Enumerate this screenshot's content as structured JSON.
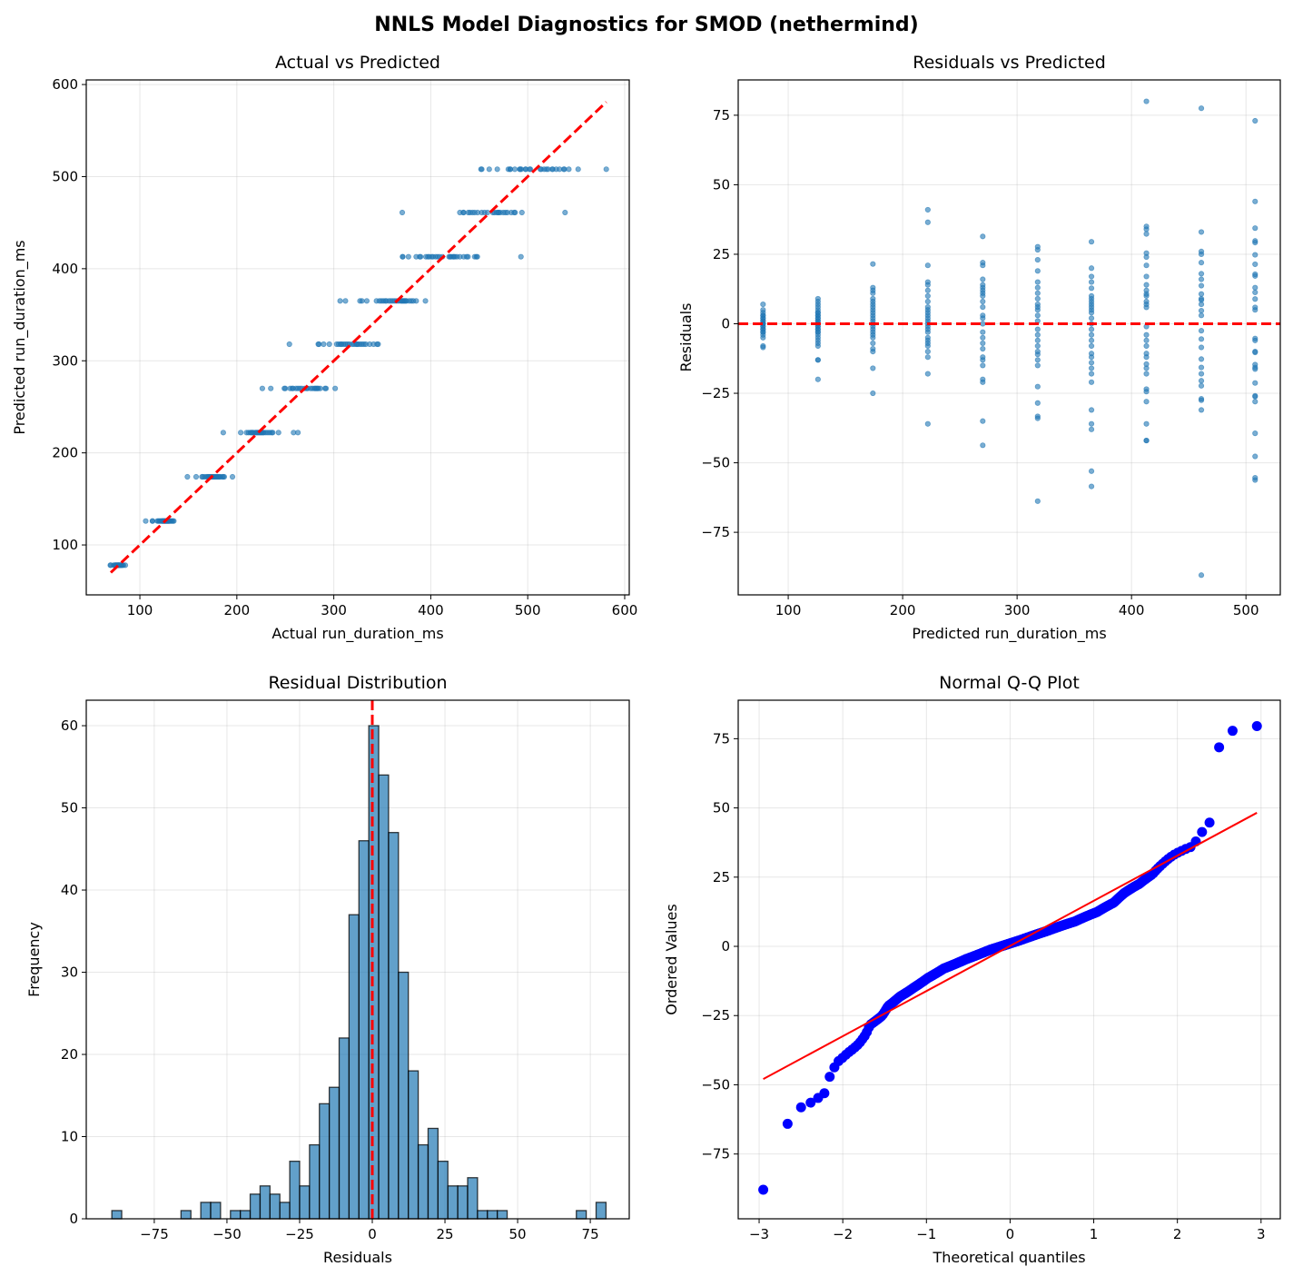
{
  "figure": {
    "suptitle": "NNLS Model Diagnostics for SMOD (nethermind)"
  },
  "chart_data": [
    {
      "type": "scatter",
      "title": "Actual vs Predicted",
      "xlabel": "Actual run_duration_ms",
      "ylabel": "Predicted run_duration_ms",
      "xlim": [
        44.7,
        604.7
      ],
      "ylim": [
        45.8,
        605
      ],
      "xticks": {
        "values": [
          100,
          200,
          300,
          400,
          500,
          600
        ],
        "labels": [
          "100",
          "200",
          "300",
          "400",
          "500",
          "600"
        ]
      },
      "yticks": {
        "values": [
          100,
          200,
          300,
          400,
          500,
          600
        ],
        "labels": [
          "100",
          "200",
          "300",
          "400",
          "500",
          "600"
        ]
      },
      "grid": true,
      "point_color": "#1f77b4",
      "reference_line": {
        "kind": "y = x",
        "from": 70,
        "to": 581,
        "color": "#ff0000",
        "style": "dashed"
      }
    },
    {
      "type": "scatter",
      "title": "Residuals vs Predicted",
      "xlabel": "Predicted run_duration_ms",
      "ylabel": "Residuals",
      "xlim": [
        56.3,
        530
      ],
      "ylim": [
        -97.5,
        87.7
      ],
      "xticks": {
        "values": [
          100,
          200,
          300,
          400,
          500
        ],
        "labels": [
          "100",
          "200",
          "300",
          "400",
          "500"
        ]
      },
      "yticks": {
        "values": [
          -75,
          -50,
          -25,
          0,
          25,
          50,
          75
        ],
        "labels": [
          "−75",
          "−50",
          "−25",
          "0",
          "25",
          "50",
          "75"
        ]
      },
      "grid": true,
      "point_color": "#1f77b4",
      "reference_line": {
        "kind": "y = 0",
        "color": "#ff0000",
        "style": "dashed"
      },
      "groups": [
        {
          "predicted": 78,
          "residuals": [
            7,
            5,
            4,
            3,
            3,
            2,
            2,
            1,
            1,
            0,
            0,
            0,
            -1,
            -1,
            -2,
            -2,
            -3,
            -3,
            -4,
            -5,
            -8,
            -8.5
          ]
        },
        {
          "predicted": 126,
          "residuals": [
            9,
            8,
            7,
            6,
            5,
            4,
            4,
            3,
            3,
            2,
            2,
            1,
            1,
            0,
            0,
            -1,
            -1,
            -2,
            -2,
            -3,
            -3,
            -4,
            -5,
            -6,
            -7,
            -8,
            -13,
            -13,
            -20
          ]
        },
        {
          "predicted": 174,
          "residuals": [
            21.5,
            13,
            12,
            11,
            9,
            8,
            7,
            6,
            5,
            4,
            3,
            2,
            1,
            0,
            -1,
            -2,
            -3,
            -4,
            -5,
            -7,
            -9,
            -10,
            -16,
            -25
          ]
        },
        {
          "predicted": 222,
          "residuals": [
            41,
            36.5,
            21,
            15,
            14,
            12,
            10,
            8,
            6,
            5,
            4,
            3,
            2,
            1,
            0,
            -1,
            -2,
            -3,
            -5,
            -6,
            -7,
            -8,
            -10,
            -12,
            -18,
            -36
          ]
        },
        {
          "predicted": 270,
          "residuals": [
            31.4,
            22,
            21,
            16,
            14,
            13,
            12,
            11,
            10,
            8,
            6,
            3,
            2,
            0,
            -3,
            -5,
            -7,
            -9,
            -12,
            -13,
            -15,
            -20,
            -21,
            -35,
            -43.7
          ]
        },
        {
          "predicted": 318,
          "residuals": [
            27.7,
            26.6,
            23,
            19,
            15,
            13,
            11,
            9,
            7,
            6,
            5,
            3,
            1,
            -2,
            -4,
            -6,
            -8,
            -10,
            -11,
            -13,
            -15,
            -22.6,
            -28.5,
            -33.3,
            -34,
            -63.8
          ]
        },
        {
          "predicted": 365,
          "residuals": [
            29.5,
            20,
            17,
            15,
            12.8,
            10,
            9,
            8,
            7,
            6,
            5,
            4,
            2,
            0,
            -2,
            -4,
            -6,
            -8,
            -10.7,
            -12,
            -14,
            -16,
            -18,
            -21,
            -31,
            -36,
            -38,
            -53,
            -58.5
          ]
        },
        {
          "predicted": 413,
          "residuals": [
            80,
            35,
            34,
            32.3,
            25.4,
            24,
            21,
            17,
            14,
            12,
            10.7,
            10,
            8,
            7,
            5.9,
            -1,
            -4,
            -6,
            -8,
            -10.7,
            -12,
            -14.5,
            -16,
            -18,
            -23.5,
            -24.4,
            -28,
            -36,
            -42,
            -42
          ]
        },
        {
          "predicted": 461,
          "residuals": [
            77.5,
            33,
            26,
            25,
            22,
            18,
            16,
            13.7,
            10.7,
            9,
            8.5,
            7,
            4.7,
            3,
            -2.5,
            -5.5,
            -8.5,
            -12.7,
            -15.7,
            -18,
            -20.5,
            -22.3,
            -27,
            -27.5,
            -31,
            -90.4
          ]
        },
        {
          "predicted": 508,
          "residuals": [
            73,
            44,
            34.4,
            29.8,
            29.2,
            24.8,
            21.4,
            17.8,
            17.2,
            13,
            11.3,
            8.9,
            5.9,
            5,
            -5.3,
            -6,
            -10,
            -10.3,
            -14.7,
            -15.7,
            -16.3,
            -21.3,
            -25.9,
            -26.2,
            -28,
            -39.4,
            -47.7,
            -55.4,
            -56.2
          ]
        }
      ]
    },
    {
      "type": "bar",
      "title": "Residual Distribution",
      "xlabel": "Residuals",
      "ylabel": "Frequency",
      "xlim": [
        -98.4,
        88.4
      ],
      "ylim": [
        0,
        63.1
      ],
      "xticks": {
        "values": [
          -75,
          -50,
          -25,
          0,
          25,
          50,
          75
        ],
        "labels": [
          "−75",
          "−50",
          "−25",
          "0",
          "25",
          "50",
          "75"
        ]
      },
      "yticks": {
        "values": [
          0,
          10,
          20,
          30,
          40,
          50,
          60
        ],
        "labels": [
          "0",
          "10",
          "20",
          "30",
          "40",
          "50",
          "60"
        ]
      },
      "grid": true,
      "bar_color": "#1f77b4",
      "bin_start": -89.6,
      "bin_width": 3.4,
      "counts": [
        1,
        0,
        0,
        0,
        0,
        0,
        0,
        1,
        0,
        2,
        2,
        0,
        1,
        1,
        3,
        4,
        3,
        2,
        7,
        4,
        9,
        14,
        16,
        22,
        37,
        46,
        60,
        54,
        47,
        30,
        18,
        9,
        11,
        7,
        4,
        4,
        5,
        1,
        1,
        1,
        0,
        0,
        0,
        0,
        0,
        0,
        0,
        1,
        0,
        2
      ],
      "reference_line": {
        "kind": "x = 0",
        "color": "#ff0000",
        "style": "dashed"
      }
    },
    {
      "type": "scatter",
      "title": "Normal Q-Q Plot",
      "xlabel": "Theoretical quantiles",
      "ylabel": "Ordered Values",
      "xlim": [
        -3.25,
        3.23
      ],
      "ylim": [
        -98.4,
        88.9
      ],
      "xticks": {
        "values": [
          -3,
          -2,
          -1,
          0,
          1,
          2,
          3
        ],
        "labels": [
          "−3",
          "−2",
          "−1",
          "0",
          "1",
          "2",
          "3"
        ]
      },
      "yticks": {
        "values": [
          -75,
          -50,
          -25,
          0,
          25,
          50,
          75
        ],
        "labels": [
          "−75",
          "−50",
          "−25",
          "0",
          "25",
          "50",
          "75"
        ]
      },
      "grid": true,
      "point_color": "#0000ff",
      "fit_line": {
        "slope": 16.3,
        "intercept": 0.15,
        "color": "#ff0000"
      }
    }
  ]
}
